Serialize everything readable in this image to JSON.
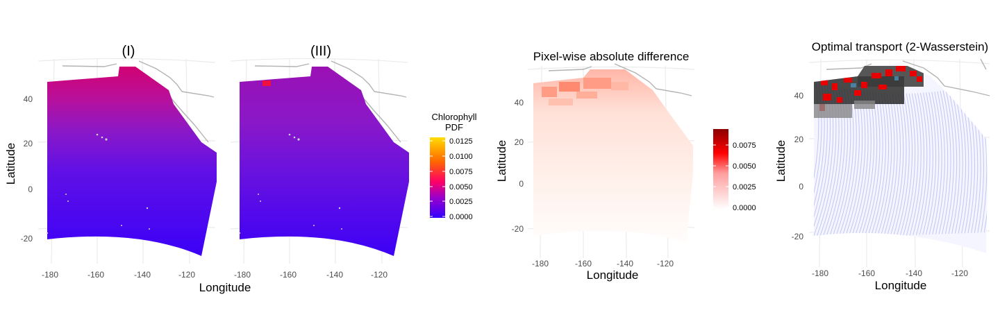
{
  "panels": {
    "p1": {
      "title": "(I)"
    },
    "p3": {
      "title": "(III)"
    },
    "diff": {
      "title": "Pixel-wise absolute difference"
    },
    "ot": {
      "title": "Optimal transport (2-Wasserstein)"
    }
  },
  "axes": {
    "xlabel": "Longitude",
    "ylabel": "Latitude",
    "x_ticks": [
      "-180",
      "-160",
      "-140",
      "-120"
    ],
    "y_ticks_map": [
      "40",
      "20",
      "0",
      "-20"
    ]
  },
  "legend_pdf": {
    "title_line1": "Chlorophyll",
    "title_line2": "PDF",
    "labels": [
      "0.0125",
      "0.0100",
      "0.0075",
      "0.0050",
      "0.0025",
      "0.0000"
    ],
    "colors": [
      "#3300ff",
      "#9900cc",
      "#ff0066",
      "#ff6600",
      "#ffdd00"
    ]
  },
  "legend_diff": {
    "labels": [
      "0.0075",
      "0.0050",
      "0.0025",
      "0.0000"
    ],
    "colors": [
      "#ffffff",
      "#ff9999",
      "#ff0000",
      "#8b0000"
    ]
  },
  "chart_data": [
    {
      "type": "heatmap",
      "title": "(I)",
      "xlabel": "Longitude",
      "ylabel": "Latitude",
      "x_ticks": [
        -180,
        -160,
        -140,
        -120
      ],
      "y_ticks": [
        40,
        20,
        0,
        -20
      ],
      "xlim": [
        -183,
        -108
      ],
      "ylim": [
        -25,
        50
      ],
      "colorbar": {
        "title": "Chlorophyll PDF",
        "range": [
          0,
          0.0125
        ],
        "ticks": [
          0,
          0.0025,
          0.005,
          0.0075,
          0.01,
          0.0125
        ]
      }
    },
    {
      "type": "heatmap",
      "title": "(III)",
      "xlabel": "Longitude",
      "x_ticks": [
        -180,
        -160,
        -140,
        -120
      ],
      "xlim": [
        -183,
        -108
      ],
      "ylim": [
        -25,
        50
      ]
    },
    {
      "type": "heatmap",
      "title": "Pixel-wise absolute difference",
      "xlabel": "Longitude",
      "ylabel": "Latitude",
      "x_ticks": [
        -180,
        -160,
        -140,
        -120
      ],
      "y_ticks": [
        40,
        20,
        0,
        -20
      ],
      "colorbar": {
        "range": [
          0,
          0.009
        ],
        "ticks": [
          0,
          0.0025,
          0.005,
          0.0075
        ]
      }
    },
    {
      "type": "scatter",
      "title": "Optimal transport (2-Wasserstein)",
      "xlabel": "Longitude",
      "ylabel": "Latitude",
      "x_ticks": [
        -180,
        -160,
        -140,
        -120
      ],
      "y_ticks": [
        40,
        20,
        0,
        -20
      ]
    }
  ]
}
